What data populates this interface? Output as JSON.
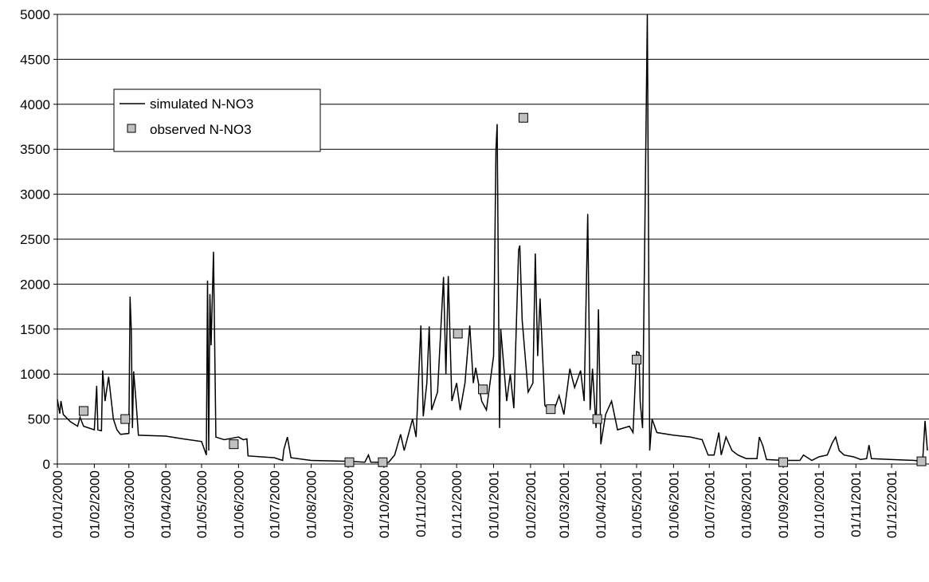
{
  "chart_data": {
    "type": "line",
    "xlim": [
      "2000-01-01",
      "2001-12-31"
    ],
    "xticks": [
      {
        "value": "2000-01-01",
        "label": "01/01/2000"
      },
      {
        "value": "2000-02-01",
        "label": "01/02/2000"
      },
      {
        "value": "2000-03-01",
        "label": "01/03/2000"
      },
      {
        "value": "2000-04-01",
        "label": "01/04/2000"
      },
      {
        "value": "2000-05-01",
        "label": "01/05/2000"
      },
      {
        "value": "2000-06-01",
        "label": "01/06/2000"
      },
      {
        "value": "2000-07-01",
        "label": "01/07/2000"
      },
      {
        "value": "2000-08-01",
        "label": "01/08/2000"
      },
      {
        "value": "2000-09-01",
        "label": "01/09/2000"
      },
      {
        "value": "2000-10-01",
        "label": "01/10/2000"
      },
      {
        "value": "2000-11-01",
        "label": "01/11/2000"
      },
      {
        "value": "2000-12-01",
        "label": "01/12/2000"
      },
      {
        "value": "2001-01-01",
        "label": "01/01/2001"
      },
      {
        "value": "2001-02-01",
        "label": "01/02/2001"
      },
      {
        "value": "2001-03-01",
        "label": "01/03/2001"
      },
      {
        "value": "2001-04-01",
        "label": "01/04/2001"
      },
      {
        "value": "2001-05-01",
        "label": "01/05/2001"
      },
      {
        "value": "2001-06-01",
        "label": "01/06/2001"
      },
      {
        "value": "2001-07-01",
        "label": "01/07/2001"
      },
      {
        "value": "2001-08-01",
        "label": "01/08/2001"
      },
      {
        "value": "2001-09-01",
        "label": "01/09/2001"
      },
      {
        "value": "2001-10-01",
        "label": "01/10/2001"
      },
      {
        "value": "2001-11-01",
        "label": "01/11/2001"
      },
      {
        "value": "2001-12-01",
        "label": "01/12/2001"
      }
    ],
    "ylim": [
      0,
      5000
    ],
    "yticks": [
      0,
      500,
      1000,
      1500,
      2000,
      2500,
      3000,
      3500,
      4000,
      4500,
      5000
    ],
    "grid": true,
    "series": [
      {
        "name": "simulated N-NO3",
        "type": "line",
        "color": "#000000",
        "x": [
          "2000-01-01",
          "2000-01-03",
          "2000-01-04",
          "2000-01-06",
          "2000-01-12",
          "2000-01-18",
          "2000-01-20",
          "2000-01-23",
          "2000-02-01",
          "2000-02-03",
          "2000-02-04",
          "2000-02-07",
          "2000-02-08",
          "2000-02-10",
          "2000-02-13",
          "2000-02-17",
          "2000-02-20",
          "2000-02-23",
          "2000-03-01",
          "2000-03-02",
          "2000-03-03",
          "2000-03-04",
          "2000-03-05",
          "2000-03-07",
          "2000-03-09",
          "2000-04-01",
          "2000-04-15",
          "2000-05-01",
          "2000-05-05",
          "2000-05-06",
          "2000-05-07",
          "2000-05-08",
          "2000-05-09",
          "2000-05-11",
          "2000-05-13",
          "2000-05-20",
          "2000-06-01",
          "2000-06-05",
          "2000-06-08",
          "2000-06-09",
          "2000-07-01",
          "2000-07-08",
          "2000-07-09",
          "2000-07-12",
          "2000-07-15",
          "2000-08-01",
          "2000-09-01",
          "2000-09-15",
          "2000-09-18",
          "2000-09-20",
          "2000-10-05",
          "2000-10-10",
          "2000-10-15",
          "2000-10-18",
          "2000-10-25",
          "2000-10-28",
          "2000-11-01",
          "2000-11-03",
          "2000-11-06",
          "2000-11-08",
          "2000-11-10",
          "2000-11-15",
          "2000-11-20",
          "2000-11-22",
          "2000-11-24",
          "2000-11-27",
          "2000-12-01",
          "2000-12-04",
          "2000-12-08",
          "2000-12-12",
          "2000-12-15",
          "2000-12-17",
          "2000-12-22",
          "2000-12-26",
          "2000-12-30",
          "2001-01-01",
          "2001-01-03",
          "2001-01-04",
          "2001-01-06",
          "2001-01-07",
          "2001-01-12",
          "2001-01-15",
          "2001-01-18",
          "2001-01-22",
          "2001-01-23",
          "2001-01-25",
          "2001-01-30",
          "2001-02-03",
          "2001-02-05",
          "2001-02-07",
          "2001-02-09",
          "2001-02-13",
          "2001-02-20",
          "2001-02-25",
          "2001-03-01",
          "2001-03-06",
          "2001-03-10",
          "2001-03-15",
          "2001-03-18",
          "2001-03-21",
          "2001-03-23",
          "2001-03-25",
          "2001-03-28",
          "2001-03-30",
          "2001-04-01",
          "2001-04-05",
          "2001-04-10",
          "2001-04-15",
          "2001-04-25",
          "2001-04-28",
          "2001-05-01",
          "2001-05-03",
          "2001-05-04",
          "2001-05-06",
          "2001-05-10",
          "2001-05-12",
          "2001-05-14",
          "2001-05-18",
          "2001-06-01",
          "2001-06-15",
          "2001-06-25",
          "2001-06-30",
          "2001-07-05",
          "2001-07-09",
          "2001-07-11",
          "2001-07-15",
          "2001-07-20",
          "2001-07-25",
          "2001-08-01",
          "2001-08-10",
          "2001-08-12",
          "2001-08-15",
          "2001-08-18",
          "2001-09-01",
          "2001-09-15",
          "2001-09-18",
          "2001-09-25",
          "2001-10-01",
          "2001-10-08",
          "2001-10-12",
          "2001-10-15",
          "2001-10-18",
          "2001-10-22",
          "2001-10-30",
          "2001-11-05",
          "2001-11-10",
          "2001-11-12",
          "2001-11-14",
          "2001-12-01",
          "2001-12-20",
          "2001-12-27",
          "2001-12-29",
          "2001-12-31"
        ],
        "values": [
          720,
          560,
          700,
          550,
          470,
          420,
          520,
          420,
          380,
          870,
          380,
          370,
          1040,
          700,
          970,
          500,
          380,
          330,
          340,
          1860,
          1500,
          400,
          1030,
          700,
          320,
          310,
          280,
          250,
          100,
          2040,
          150,
          1890,
          1320,
          2360,
          300,
          270,
          300,
          270,
          280,
          90,
          70,
          40,
          160,
          300,
          70,
          40,
          30,
          20,
          100,
          20,
          20,
          100,
          330,
          150,
          500,
          300,
          1540,
          530,
          900,
          1530,
          600,
          800,
          2080,
          1000,
          2090,
          700,
          900,
          600,
          900,
          1540,
          900,
          1070,
          700,
          600,
          1000,
          1200,
          3500,
          3780,
          400,
          1500,
          700,
          1000,
          620,
          2380,
          2430,
          1600,
          800,
          900,
          2340,
          1200,
          1840,
          650,
          570,
          760,
          550,
          1060,
          850,
          1040,
          700,
          2780,
          600,
          1060,
          400,
          1720,
          220,
          550,
          700,
          380,
          420,
          350,
          1250,
          1240,
          700,
          400,
          5000,
          150,
          500,
          350,
          320,
          300,
          270,
          100,
          100,
          350,
          100,
          300,
          150,
          100,
          60,
          60,
          300,
          200,
          50,
          40,
          40,
          100,
          40,
          80,
          100,
          230,
          300,
          150,
          100,
          80,
          50,
          60,
          210,
          60,
          50,
          40,
          30,
          480,
          150
        ]
      },
      {
        "name": "observed N-NO3",
        "type": "scatter",
        "color": "#c0c0c0",
        "x": [
          "2000-01-23",
          "2000-02-27",
          "2000-05-28",
          "2000-09-02",
          "2000-09-30",
          "2000-12-02",
          "2000-12-23",
          "2001-01-26",
          "2001-02-18",
          "2001-03-29",
          "2001-05-01",
          "2001-09-01",
          "2001-12-26"
        ],
        "values": [
          590,
          500,
          220,
          20,
          20,
          1450,
          830,
          3850,
          610,
          500,
          1160,
          20,
          30
        ]
      }
    ]
  }
}
